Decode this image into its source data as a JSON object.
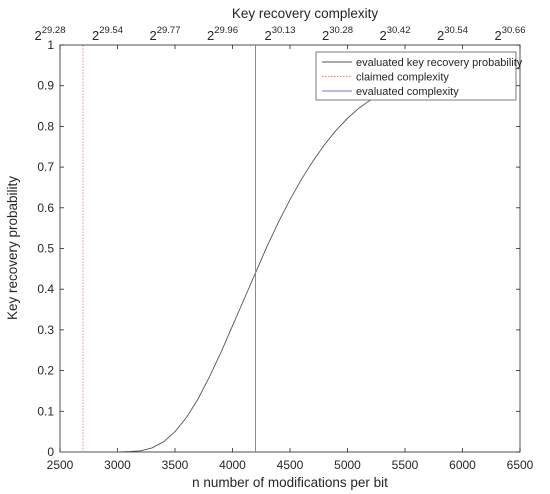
{
  "chart_data": {
    "type": "line",
    "title": "Key recovery complexity",
    "xlabel": "n number of modifications per bit",
    "ylabel": "Key recovery probability",
    "xlim": [
      2500,
      6500
    ],
    "ylim": [
      0,
      1
    ],
    "x_ticks": [
      2500,
      3000,
      3500,
      4000,
      4500,
      5000,
      5500,
      6000,
      6500
    ],
    "y_ticks": [
      0,
      0.1,
      0.2,
      0.3,
      0.4,
      0.5,
      0.6,
      0.7,
      0.8,
      0.9,
      1
    ],
    "top_axis": {
      "base": "2",
      "ticks": [
        {
          "x": 2500,
          "exp": "29.28"
        },
        {
          "x": 3000,
          "exp": "29.54"
        },
        {
          "x": 3500,
          "exp": "29.77"
        },
        {
          "x": 4000,
          "exp": "29.96"
        },
        {
          "x": 4500,
          "exp": "30.13"
        },
        {
          "x": 5000,
          "exp": "30.28"
        },
        {
          "x": 5500,
          "exp": "30.42"
        },
        {
          "x": 6000,
          "exp": "30.54"
        },
        {
          "x": 6500,
          "exp": "30.66"
        }
      ]
    },
    "series": [
      {
        "name": "evaluated key recovery probability",
        "style": "solid",
        "color": "#555555",
        "x": [
          2500,
          2700,
          2900,
          3000,
          3100,
          3200,
          3300,
          3400,
          3500,
          3600,
          3700,
          3800,
          3900,
          4000,
          4100,
          4200,
          4300,
          4400,
          4500,
          4600,
          4700,
          4800,
          4900,
          5000,
          5100,
          5200,
          5300,
          5400,
          5500,
          5600,
          5700,
          5800,
          5900,
          6000,
          6100,
          6200,
          6300,
          6400,
          6500
        ],
        "y": [
          0,
          0,
          0,
          0,
          0.001,
          0.003,
          0.01,
          0.025,
          0.05,
          0.085,
          0.13,
          0.185,
          0.245,
          0.31,
          0.375,
          0.44,
          0.505,
          0.565,
          0.62,
          0.67,
          0.715,
          0.755,
          0.79,
          0.82,
          0.845,
          0.865,
          0.882,
          0.895,
          0.905,
          0.913,
          0.92,
          0.925,
          0.93,
          0.933,
          0.936,
          0.938,
          0.94,
          0.941,
          0.942
        ]
      },
      {
        "name": "claimed complexity",
        "style": "dotted",
        "color": "#d98585",
        "x": [
          2700,
          2700
        ],
        "y": [
          0,
          1
        ]
      },
      {
        "name": "evaluated complexity",
        "style": "solid",
        "color": "#7b6fd6",
        "x": [
          4200,
          4200
        ],
        "y": [
          0,
          1
        ]
      }
    ],
    "legend_position": "top-right",
    "grid": false
  }
}
